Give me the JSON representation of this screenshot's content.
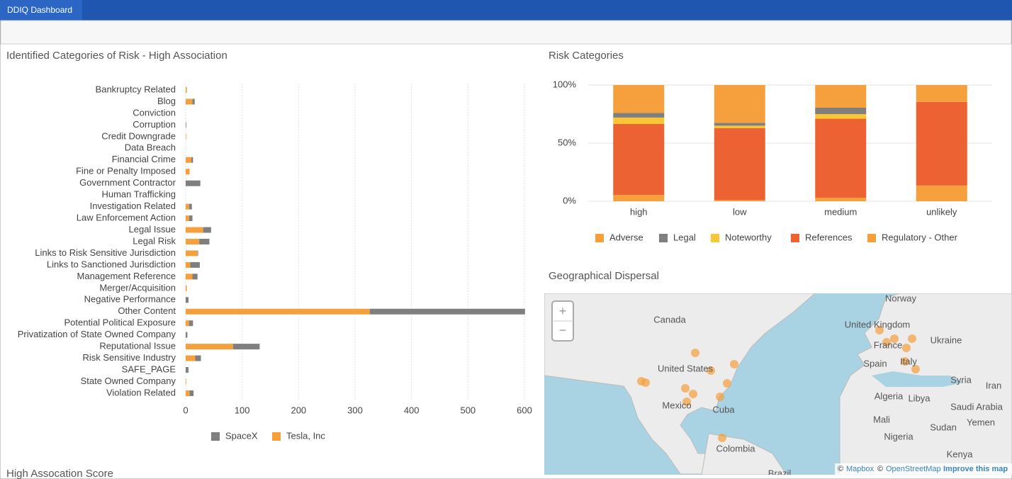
{
  "header": {
    "tab": "DDIQ Dashboard"
  },
  "chart_data": [
    {
      "type": "bar",
      "orientation": "horizontal",
      "stacked": true,
      "grid": true,
      "legend": "bottom",
      "title": "Identified Categories of Risk - High Association",
      "categories": [
        "Bankruptcy Related",
        "Blog",
        "Conviction",
        "Corruption",
        "Credit Downgrade",
        "Data Breach",
        "Financial Crime",
        "Fine or Penalty Imposed",
        "Government Contractor",
        "Human Trafficking",
        "Investigation Related",
        "Law Enforcement Action",
        "Legal Issue",
        "Legal Risk",
        "Links to Risk Sensitive Jurisdiction",
        "Links to Sanctioned Jurisdiction",
        "Management Reference",
        "Merger/Acquisition",
        "Negative Performance",
        "Other Content",
        "Potential Political Exposure",
        "Privatization of State Owned Company",
        "Reputational Issue",
        "Risk Sensitive Industry",
        "SAFE_PAGE",
        "State Owned Company",
        "Violation Related"
      ],
      "series": [
        {
          "name": "SpaceX",
          "color": "#7f7f7f",
          "values": [
            0,
            4,
            0,
            1,
            0,
            0,
            3,
            0,
            26,
            0,
            5,
            6,
            14,
            18,
            1,
            17,
            9,
            0,
            5,
            275,
            7,
            3,
            47,
            10,
            5,
            0,
            7
          ]
        },
        {
          "name": "Tesla, Inc",
          "color": "#f5a03c",
          "values": [
            2,
            12,
            0,
            0,
            1,
            0,
            10,
            7,
            0,
            0,
            6,
            6,
            31,
            24,
            21,
            8,
            12,
            2,
            0,
            326,
            6,
            0,
            84,
            17,
            0,
            1,
            7
          ]
        }
      ],
      "xlim": [
        0,
        600
      ],
      "xticks": [
        0,
        100,
        200,
        300,
        400,
        500,
        600
      ]
    },
    {
      "type": "bar",
      "orientation": "vertical",
      "stacked": true,
      "grid": true,
      "legend": "bottom",
      "title": "Risk Categories",
      "categories": [
        "high",
        "low",
        "medium",
        "unlikely"
      ],
      "series": [
        {
          "name": "Adverse",
          "color": "#f5a03c",
          "values": [
            24,
            32.5,
            19.5,
            14.5
          ]
        },
        {
          "name": "Legal",
          "color": "#7f7f7f",
          "values": [
            4,
            2.5,
            5.5,
            0
          ]
        },
        {
          "name": "Noteworthy",
          "color": "#fbc534",
          "values": [
            5.5,
            2,
            4,
            0
          ]
        },
        {
          "name": "References",
          "color": "#ec6232",
          "values": [
            61,
            62,
            68,
            72
          ]
        },
        {
          "name": "Regulatory - Other",
          "color": "#f5a03c",
          "values": [
            5.5,
            1,
            3,
            13.5
          ]
        }
      ],
      "ylim": [
        0,
        100
      ],
      "yticks": [
        {
          "value": 0,
          "label": "0%"
        },
        {
          "value": 50,
          "label": "50%"
        },
        {
          "value": 100,
          "label": "100%"
        }
      ]
    }
  ],
  "map": {
    "title": "Geographical Dispersal",
    "zoom_in": "+",
    "zoom_out": "−",
    "labels": [
      "Canada",
      "United States",
      "Mexico",
      "Cuba",
      "Colombia",
      "Brazil",
      "Norway",
      "United Kingdom",
      "France",
      "Spain",
      "Italy",
      "Ukraine",
      "Algeria",
      "Libya",
      "Syria",
      "Iran",
      "Saudi Arabia",
      "Mali",
      "Sudan",
      "Yemen",
      "Nigeria",
      "Kenya"
    ],
    "attribution": {
      "copy": "©",
      "mapbox": "Mapbox",
      "osm": "OpenStreetMap",
      "improve": "Improve this map"
    }
  },
  "footer_title": "High Assocation Score"
}
